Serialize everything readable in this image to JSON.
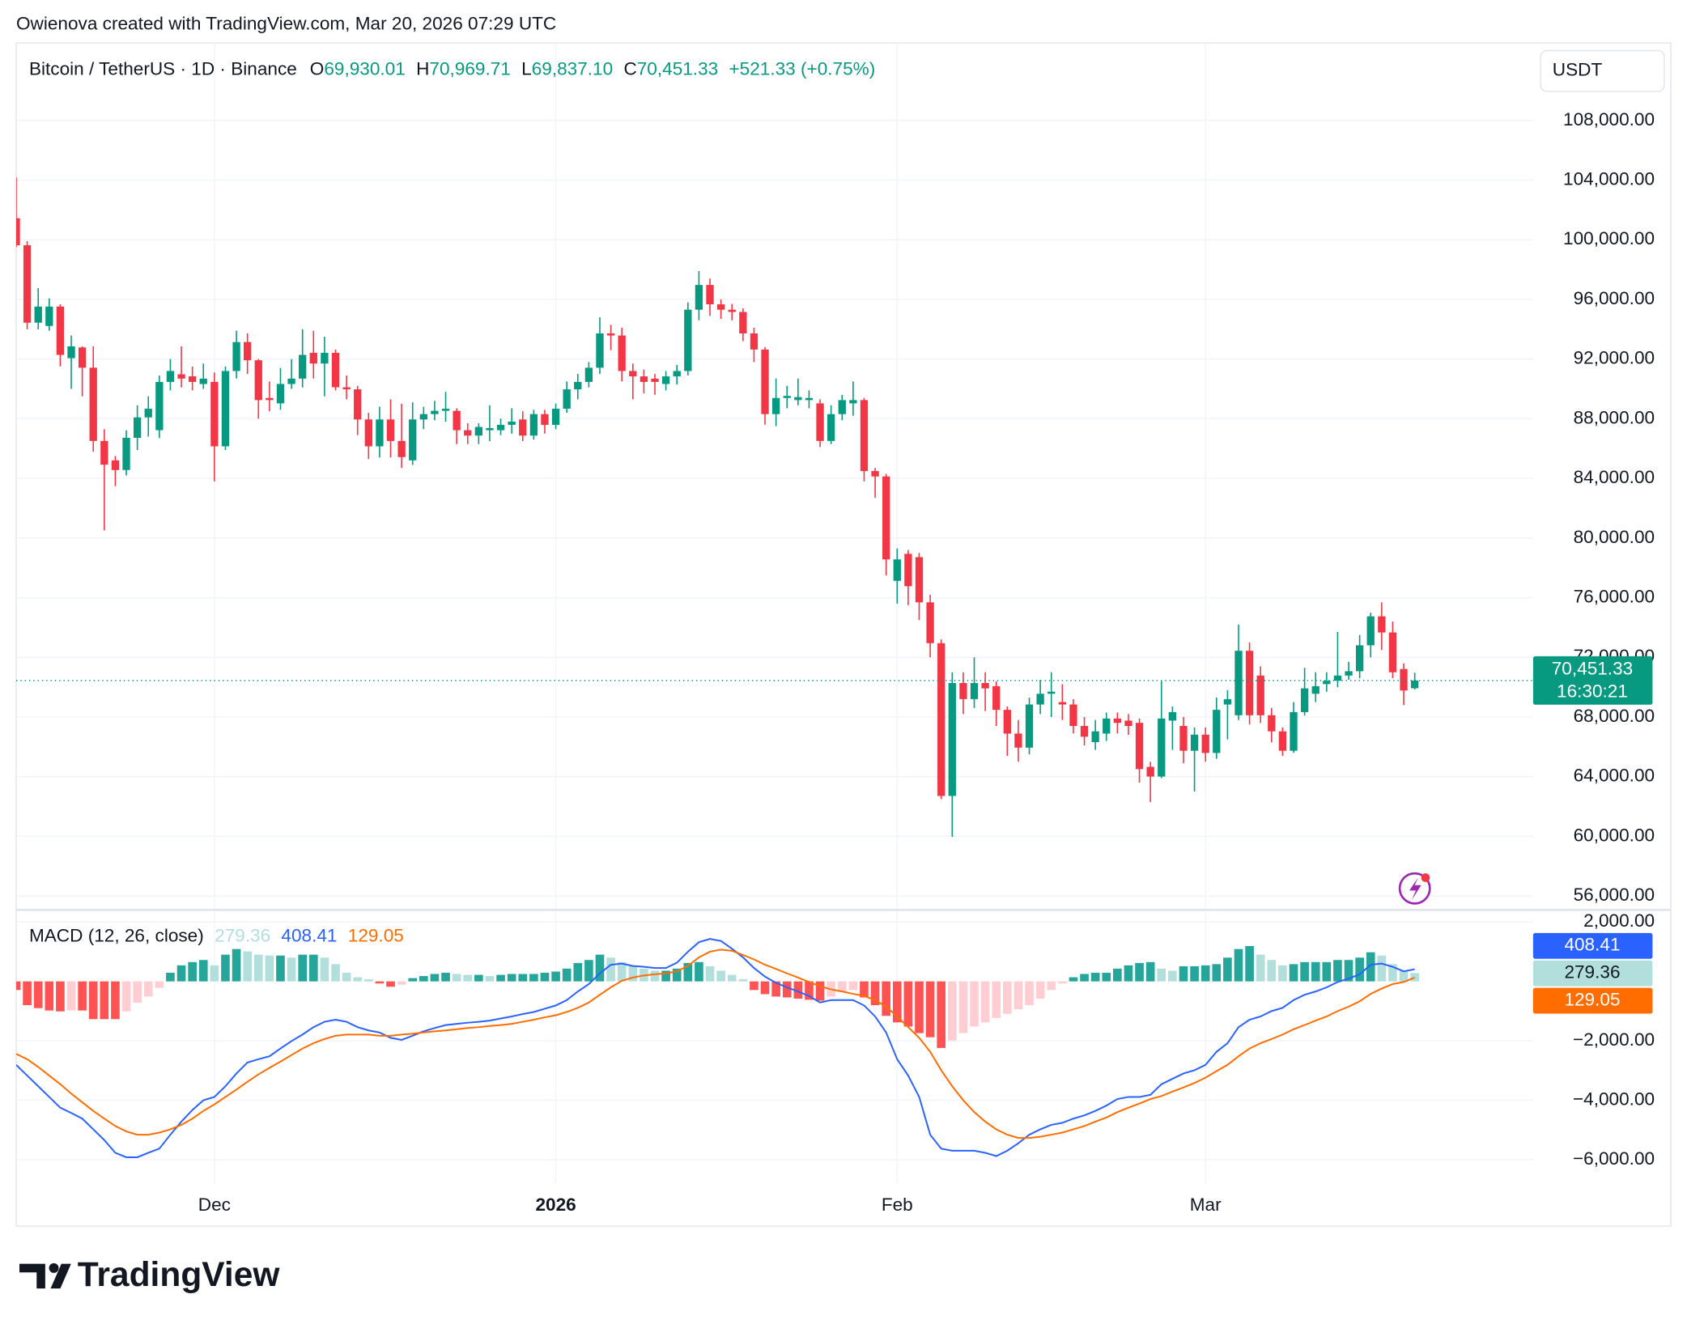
{
  "header": {
    "attribution": "Owienova created with TradingView.com, Mar 20, 2026 07:29 UTC"
  },
  "footer": {
    "logo": "TradingView"
  },
  "chart_data": [
    {
      "type": "candlestick",
      "title": "Bitcoin / TetherUS · 1D · Binance",
      "ohlc": [
        {
          "label": "O",
          "value": "69,930.01"
        },
        {
          "label": "H",
          "value": "70,969.71"
        },
        {
          "label": "L",
          "value": "69,837.10"
        },
        {
          "label": "C",
          "value": "70,451.33"
        }
      ],
      "change": "+521.33 (+0.75%)",
      "currency": "USDT",
      "last_price_label": "70,451.33",
      "countdown": "16:30:21",
      "up_color": "#089981",
      "down_color": "#f23645",
      "grid": true,
      "xlim": [
        0,
        137.75
      ],
      "xticks": [
        {
          "value": 18,
          "label": "Dec"
        },
        {
          "value": 49,
          "label": "2026",
          "bold": true
        },
        {
          "value": 80,
          "label": "Feb"
        },
        {
          "value": 108,
          "label": "Mar"
        }
      ],
      "ylim": [
        55140,
        113190
      ],
      "yticks": [
        {
          "value": 56000,
          "label": "56,000.00"
        },
        {
          "value": 60000,
          "label": "60,000.00"
        },
        {
          "value": 64000,
          "label": "64,000.00"
        },
        {
          "value": 68000,
          "label": "68,000.00"
        },
        {
          "value": 72000,
          "label": "72,000.00"
        },
        {
          "value": 76000,
          "label": "76,000.00"
        },
        {
          "value": 80000,
          "label": "80,000.00"
        },
        {
          "value": 84000,
          "label": "84,000.00"
        },
        {
          "value": 88000,
          "label": "88,000.00"
        },
        {
          "value": 92000,
          "label": "92,000.00"
        },
        {
          "value": 96000,
          "label": "96,000.00"
        },
        {
          "value": 100000,
          "label": "100,000.00"
        },
        {
          "value": 104000,
          "label": "104,000.00"
        },
        {
          "value": 108000,
          "label": "108,000.00"
        }
      ],
      "open": [
        101440,
        99630,
        94440,
        94220,
        95520,
        92060,
        92780,
        91420,
        86510,
        85210,
        84560,
        86720,
        88090,
        87230,
        90470,
        90980,
        90840,
        90330,
        90470,
        86150,
        91200,
        93140,
        91920,
        89390,
        89030,
        90330,
        90690,
        92420,
        91700,
        92420,
        90110,
        89970,
        87950,
        86150,
        87950,
        86510,
        85210,
        87950,
        88310,
        88530,
        88530,
        87230,
        86870,
        87230,
        87230,
        87590,
        87950,
        86870,
        88310,
        87590,
        88670,
        89970,
        90470,
        91420,
        93720,
        93580,
        91200,
        90840,
        90690,
        90330,
        90840,
        91200,
        95310,
        96970,
        95670,
        95310,
        95160,
        93720,
        92640,
        88310,
        89390,
        89250,
        89250,
        89030,
        86510,
        88310,
        89030,
        89250,
        84490,
        84130,
        77130,
        78940,
        78720,
        75690,
        72950,
        62710,
        70280,
        69200,
        70280,
        70070,
        68480,
        66890,
        65950,
        68840,
        69560,
        69000,
        68840,
        67400,
        66320,
        66890,
        67900,
        67760,
        67610,
        64660,
        64010,
        67760,
        67400,
        65740,
        66820,
        65590,
        68840,
        68120,
        72440,
        70780,
        68120,
        67040,
        65740,
        68330,
        69560,
        70210,
        70430,
        70780,
        71070,
        72810,
        74750,
        73670,
        71220,
        69930.01
      ],
      "high": [
        104180,
        99900,
        96750,
        96070,
        95670,
        93580,
        92850,
        92850,
        87300,
        85500,
        87230,
        88900,
        89500,
        90900,
        92000,
        92850,
        91500,
        91700,
        91100,
        91500,
        93900,
        93720,
        92000,
        90500,
        91400,
        92000,
        94000,
        93900,
        93500,
        92640,
        90900,
        90200,
        88400,
        88800,
        89300,
        89000,
        89100,
        88800,
        89200,
        89800,
        88700,
        87700,
        87700,
        88900,
        88000,
        88700,
        88500,
        88600,
        88600,
        89000,
        90500,
        91000,
        91800,
        94800,
        94300,
        94100,
        91700,
        91300,
        91000,
        91200,
        91600,
        95800,
        97900,
        97400,
        96000,
        95700,
        95400,
        94100,
        92800,
        90700,
        90200,
        90700,
        89900,
        89300,
        88900,
        89600,
        90500,
        89400,
        84700,
        84300,
        79300,
        79200,
        79000,
        76200,
        73200,
        71000,
        71000,
        72000,
        71000,
        70400,
        68700,
        67800,
        69300,
        70500,
        71000,
        70200,
        69200,
        68000,
        67800,
        68300,
        68300,
        68200,
        67900,
        65000,
        70400,
        68700,
        68000,
        67300,
        67300,
        69300,
        69800,
        74200,
        73000,
        71400,
        68600,
        67300,
        69000,
        71300,
        71000,
        71000,
        73700,
        71700,
        73500,
        75000,
        75690,
        74400,
        71600,
        70969.71
      ],
      "low": [
        99500,
        94000,
        94000,
        93900,
        91500,
        90000,
        89500,
        85800,
        80520,
        83480,
        84200,
        85900,
        86800,
        86700,
        89900,
        90100,
        89900,
        90000,
        83800,
        85900,
        90700,
        91000,
        88000,
        88500,
        88600,
        90000,
        90100,
        90700,
        89500,
        89900,
        89300,
        86900,
        85300,
        85400,
        85400,
        84700,
        84900,
        87300,
        87900,
        87800,
        86300,
        86300,
        86300,
        86500,
        86900,
        87000,
        86500,
        86600,
        87000,
        87300,
        88400,
        89300,
        90100,
        91000,
        92600,
        90500,
        89300,
        89700,
        89600,
        89900,
        90300,
        90900,
        94600,
        94900,
        94700,
        94600,
        93200,
        91800,
        87600,
        87500,
        88700,
        88900,
        88700,
        86100,
        86300,
        87900,
        88200,
        83800,
        82700,
        77500,
        75600,
        75500,
        74500,
        72000,
        62500,
        59970,
        68200,
        68600,
        68400,
        67400,
        65400,
        65000,
        65500,
        68200,
        68000,
        67800,
        66900,
        66100,
        65800,
        66400,
        66900,
        66800,
        63600,
        62300,
        63900,
        65800,
        64900,
        63000,
        65000,
        65200,
        66500,
        67800,
        67500,
        67600,
        66300,
        65400,
        65600,
        68100,
        69000,
        69700,
        70000,
        70500,
        70600,
        72000,
        72500,
        70600,
        68800,
        69837.1
      ],
      "close": [
        99630,
        94440,
        95520,
        95520,
        92280,
        92850,
        91420,
        86510,
        84920,
        84560,
        86720,
        88090,
        88670,
        90470,
        91200,
        90690,
        90470,
        90690,
        86150,
        91200,
        93140,
        91920,
        89250,
        89250,
        90330,
        90690,
        92280,
        91700,
        92420,
        90110,
        89970,
        87950,
        86150,
        87950,
        86510,
        85430,
        87950,
        88310,
        88530,
        88670,
        87230,
        86870,
        87450,
        87370,
        87590,
        87810,
        86870,
        88310,
        87590,
        88670,
        89970,
        90470,
        91420,
        93720,
        93580,
        91200,
        90840,
        90470,
        90470,
        90840,
        91200,
        95310,
        96970,
        95670,
        95310,
        95160,
        93720,
        92640,
        88310,
        89390,
        89530,
        89450,
        89390,
        86510,
        88310,
        89250,
        89250,
        84490,
        84130,
        78570,
        78570,
        76770,
        75690,
        72950,
        62710,
        70280,
        69200,
        70280,
        69920,
        68480,
        66890,
        65950,
        68840,
        69560,
        69700,
        68840,
        67400,
        66680,
        67040,
        67900,
        67610,
        67400,
        64510,
        64010,
        67900,
        68330,
        65740,
        66820,
        65590,
        68480,
        69200,
        72440,
        68120,
        68120,
        67040,
        65740,
        68330,
        69920,
        70070,
        70430,
        70780,
        71070,
        72810,
        74750,
        73670,
        71000,
        69780,
        70451.33
      ]
    },
    {
      "type": "macd",
      "title": "MACD (12, 26, close)",
      "grid": true,
      "ylim": [
        -6790,
        2370
      ],
      "yticks": [
        {
          "value": -6000,
          "label": "−6,000.00"
        },
        {
          "value": -4000,
          "label": "−4,000.00"
        },
        {
          "value": -2000,
          "label": "−2,000.00"
        },
        {
          "value": 2000,
          "label": "2,000.00"
        }
      ],
      "series": [
        {
          "mark": "histogram",
          "colors": [
            "#26a69a",
            "#b2dfdb",
            "#ff5252",
            "#ffcdd2"
          ],
          "last_label": "279.36",
          "values": [
            -290,
            -800,
            -900,
            -980,
            -1010,
            -980,
            -980,
            -1270,
            -1270,
            -1270,
            -1010,
            -720,
            -510,
            -220,
            290,
            540,
            650,
            720,
            540,
            900,
            1090,
            1010,
            900,
            870,
            870,
            800,
            900,
            900,
            800,
            580,
            290,
            140,
            70,
            -70,
            -180,
            -110,
            110,
            180,
            250,
            290,
            250,
            220,
            220,
            180,
            220,
            250,
            250,
            250,
            290,
            330,
            430,
            620,
            720,
            900,
            800,
            650,
            510,
            430,
            360,
            360,
            430,
            620,
            650,
            510,
            360,
            220,
            70,
            -290,
            -430,
            -510,
            -540,
            -580,
            -620,
            -650,
            -510,
            -360,
            -290,
            -540,
            -800,
            -1160,
            -1380,
            -1520,
            -1740,
            -1880,
            -2240,
            -1990,
            -1740,
            -1520,
            -1380,
            -1230,
            -1090,
            -940,
            -800,
            -580,
            -290,
            -70,
            140,
            250,
            290,
            290,
            430,
            540,
            620,
            650,
            430,
            360,
            510,
            510,
            540,
            580,
            800,
            1090,
            1190,
            900,
            720,
            540,
            580,
            650,
            650,
            650,
            720,
            720,
            800,
            980,
            870,
            580,
            360,
            279.36
          ]
        },
        {
          "mark": "line",
          "color": "#2962ff",
          "last_label": "408.41",
          "values": [
            -2810,
            -3170,
            -3530,
            -3890,
            -4250,
            -4430,
            -4620,
            -4980,
            -5340,
            -5770,
            -5920,
            -5920,
            -5770,
            -5630,
            -5160,
            -4720,
            -4330,
            -4000,
            -3890,
            -3530,
            -3100,
            -2730,
            -2620,
            -2520,
            -2260,
            -2010,
            -1790,
            -1540,
            -1360,
            -1290,
            -1360,
            -1540,
            -1650,
            -1720,
            -1900,
            -1970,
            -1830,
            -1680,
            -1570,
            -1470,
            -1430,
            -1390,
            -1360,
            -1320,
            -1250,
            -1180,
            -1100,
            -1030,
            -920,
            -810,
            -630,
            -340,
            -90,
            270,
            560,
            600,
            520,
            490,
            450,
            450,
            630,
            1000,
            1320,
            1430,
            1360,
            1100,
            810,
            450,
            160,
            -50,
            -200,
            -340,
            -490,
            -710,
            -630,
            -630,
            -630,
            -810,
            -1180,
            -1720,
            -2620,
            -3170,
            -3890,
            -5160,
            -5630,
            -5700,
            -5700,
            -5700,
            -5770,
            -5880,
            -5700,
            -5450,
            -5160,
            -4980,
            -4830,
            -4760,
            -4620,
            -4510,
            -4360,
            -4180,
            -3960,
            -3890,
            -3890,
            -3820,
            -3460,
            -3280,
            -3100,
            -2990,
            -2810,
            -2370,
            -2080,
            -1540,
            -1290,
            -1180,
            -1000,
            -890,
            -630,
            -450,
            -340,
            -200,
            -20,
            90,
            240,
            560,
            600,
            490,
            340,
            408.41
          ]
        },
        {
          "mark": "line",
          "color": "#ff6d00",
          "last_label": "129.05",
          "values": [
            -2440,
            -2620,
            -2880,
            -3170,
            -3460,
            -3780,
            -4070,
            -4360,
            -4620,
            -4870,
            -5050,
            -5160,
            -5160,
            -5090,
            -4980,
            -4830,
            -4620,
            -4360,
            -4140,
            -3890,
            -3640,
            -3380,
            -3130,
            -2910,
            -2700,
            -2480,
            -2260,
            -2080,
            -1940,
            -1830,
            -1790,
            -1790,
            -1790,
            -1830,
            -1830,
            -1790,
            -1760,
            -1720,
            -1680,
            -1650,
            -1610,
            -1570,
            -1540,
            -1500,
            -1470,
            -1430,
            -1360,
            -1290,
            -1210,
            -1140,
            -1030,
            -890,
            -710,
            -450,
            -200,
            20,
            130,
            200,
            240,
            270,
            340,
            520,
            810,
            1000,
            1070,
            1030,
            890,
            740,
            560,
            420,
            270,
            130,
            -20,
            -160,
            -270,
            -340,
            -420,
            -490,
            -630,
            -850,
            -1180,
            -1540,
            -1900,
            -2370,
            -2990,
            -3530,
            -4000,
            -4400,
            -4720,
            -4980,
            -5160,
            -5270,
            -5270,
            -5230,
            -5160,
            -5090,
            -4980,
            -4870,
            -4720,
            -4580,
            -4400,
            -4250,
            -4110,
            -3960,
            -3860,
            -3710,
            -3570,
            -3420,
            -3240,
            -3020,
            -2810,
            -2520,
            -2260,
            -2080,
            -1940,
            -1790,
            -1610,
            -1470,
            -1320,
            -1180,
            -1000,
            -850,
            -670,
            -420,
            -240,
            -90,
            -20,
            129.05
          ]
        }
      ]
    }
  ]
}
